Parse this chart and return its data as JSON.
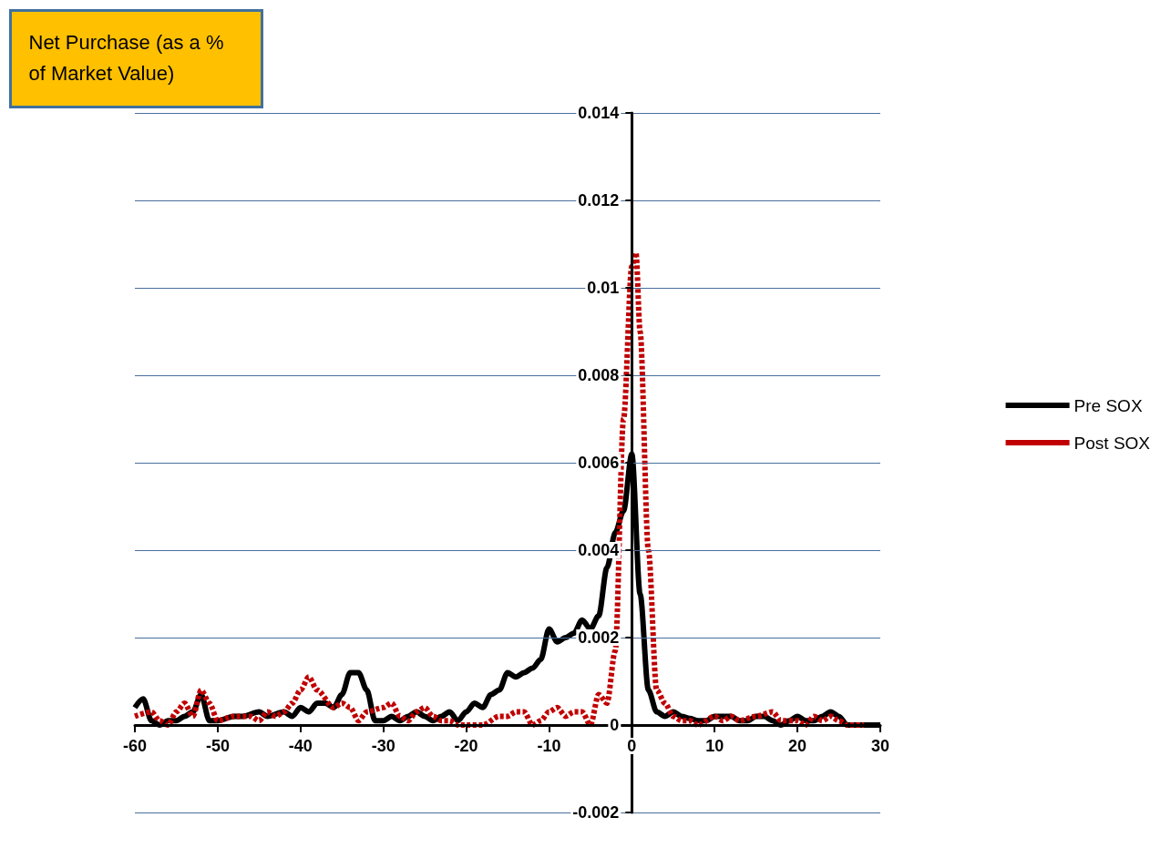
{
  "chart_data": {
    "type": "line",
    "ylabel": "Net Purchase (as a % of Market Value)",
    "xlim": [
      -60,
      30
    ],
    "xticks": [
      -60,
      -50,
      -40,
      -30,
      -20,
      -10,
      0,
      10,
      20,
      30
    ],
    "ylim": [
      -0.002,
      0.014
    ],
    "yticks": [
      -0.002,
      0,
      0.002,
      0.004,
      0.006,
      0.008,
      0.01,
      0.012,
      0.014
    ],
    "grid": "y",
    "legend": "right",
    "marker": "none",
    "series": [
      {
        "name": "Pre SOX",
        "color": "#000000",
        "line_style": "solid",
        "x": [
          -60,
          -59,
          -58,
          -57,
          -56,
          -55,
          -54,
          -53,
          -52,
          -51,
          -50,
          -48,
          -47,
          -45,
          -44,
          -42,
          -41,
          -40,
          -39,
          -38,
          -37,
          -36,
          -35,
          -34,
          -33,
          -32,
          -31,
          -30,
          -29,
          -28,
          -27,
          -26,
          -25,
          -24,
          -23,
          -22,
          -21,
          -20,
          -19,
          -18,
          -17,
          -16,
          -15,
          -14,
          -13,
          -12,
          -11,
          -10,
          -9,
          -8,
          -7,
          -6,
          -5,
          -4,
          -3,
          -2,
          -1,
          0,
          1,
          2,
          3,
          4,
          5,
          6,
          7,
          8,
          9,
          10,
          11,
          12,
          13,
          14,
          15,
          16,
          17,
          18,
          19,
          20,
          21,
          22,
          23,
          24,
          25,
          26,
          27,
          28,
          30
        ],
        "values": [
          0.0004,
          0.0006,
          0.0001,
          0,
          0.0001,
          0.0001,
          0.0002,
          0.0003,
          0.0007,
          0.0001,
          0.0001,
          0.0002,
          0.0002,
          0.0003,
          0.0002,
          0.0003,
          0.0002,
          0.0004,
          0.0003,
          0.0005,
          0.0005,
          0.0004,
          0.0007,
          0.0012,
          0.0012,
          0.0008,
          0.0001,
          0.0001,
          0.0002,
          0.0001,
          0.0002,
          0.0003,
          0.0002,
          0.0001,
          0.0002,
          0.0003,
          0.0001,
          0.0003,
          0.0005,
          0.0004,
          0.0007,
          0.0008,
          0.0012,
          0.0011,
          0.0012,
          0.0013,
          0.0015,
          0.0022,
          0.0019,
          0.002,
          0.0021,
          0.0024,
          0.0022,
          0.0025,
          0.0036,
          0.0044,
          0.0049,
          0.0062,
          0.003,
          0.0008,
          0.0003,
          0.0002,
          0.0003,
          0.0002,
          0.00015,
          0.0001,
          0.0001,
          0.0002,
          0.0002,
          0.0002,
          0.0001,
          0.0001,
          0.0002,
          0.0002,
          0.0001,
          0,
          0.0001,
          0.0002,
          0.0001,
          0.0001,
          0.0002,
          0.0003,
          0.0002,
          0,
          0,
          0,
          0
        ]
      },
      {
        "name": "Post SOX",
        "color": "#c00000",
        "line_style": "dashed",
        "x": [
          -60,
          -58,
          -57,
          -56,
          -55,
          -54,
          -53,
          -52,
          -51,
          -50,
          -48,
          -46,
          -45,
          -44,
          -43,
          -42,
          -41,
          -40,
          -39,
          -38,
          -36,
          -35,
          -34,
          -33,
          -32,
          -30,
          -29,
          -28,
          -27,
          -26,
          -25,
          -24,
          -23,
          -22,
          -21,
          -20,
          -18,
          -16,
          -15,
          -14,
          -13,
          -12,
          -11,
          -10,
          -9,
          -8,
          -7,
          -6,
          -5,
          -4,
          -3,
          -2,
          -1,
          0,
          0.5,
          1,
          2,
          3,
          4,
          5,
          6,
          7,
          8,
          10,
          11,
          12,
          13,
          15,
          17,
          18,
          20,
          21,
          22,
          23,
          24,
          25,
          26,
          28
        ],
        "values": [
          0.0002,
          0.0003,
          0.0001,
          0,
          0.0003,
          0.0005,
          0.0002,
          0.0008,
          0.0005,
          0.0001,
          0.0002,
          0.0002,
          0.0001,
          0.0003,
          0.0002,
          0.0003,
          0.0005,
          0.0008,
          0.0011,
          0.0008,
          0.0004,
          0.0005,
          0.0004,
          0.0001,
          0.0003,
          0.0004,
          0.0005,
          0.0002,
          0.0001,
          0.0003,
          0.0004,
          0.0002,
          0.0001,
          0.0001,
          0,
          0,
          0,
          0.0002,
          0.0002,
          0.0003,
          0.0003,
          0,
          0.0001,
          0.0003,
          0.0004,
          0.0002,
          0.0003,
          0.0003,
          0,
          0.0007,
          0.0005,
          0.0017,
          0.007,
          0.0105,
          0.0108,
          0.009,
          0.004,
          0.0008,
          0.0005,
          0.0002,
          0.0001,
          0.0001,
          0,
          0.0002,
          0.0001,
          0.0002,
          0.0001,
          0.0002,
          0.0003,
          0.0001,
          0.0001,
          0,
          0.0002,
          0.0001,
          0.0002,
          0.0001,
          0,
          0
        ]
      }
    ]
  }
}
